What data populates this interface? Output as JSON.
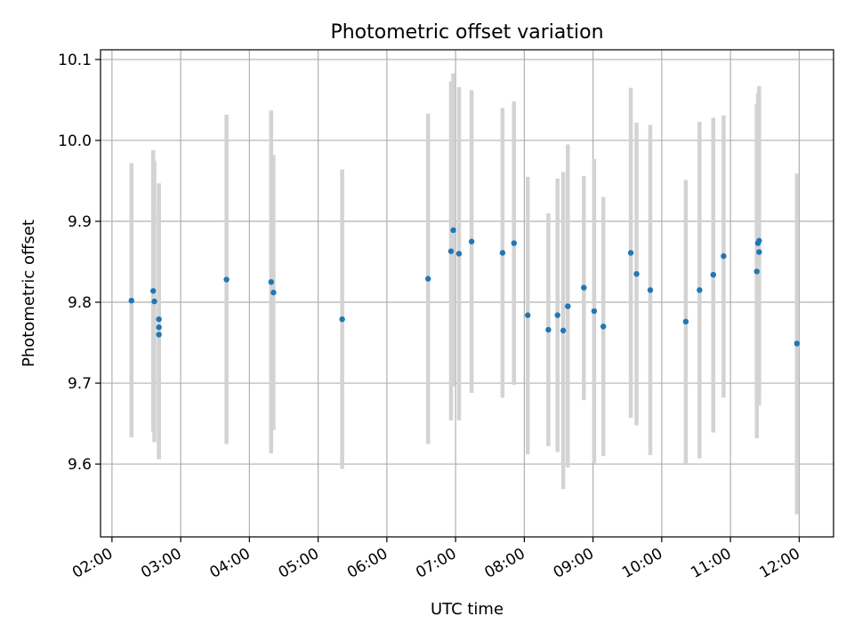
{
  "chart_data": {
    "type": "scatter",
    "title": "Photometric offset variation",
    "xlabel": "UTC time",
    "ylabel": "Photometric offset",
    "xlim": [
      "01:50",
      "12:30"
    ],
    "ylim": [
      9.51,
      10.112
    ],
    "grid": true,
    "x_ticks": [
      "02:00",
      "03:00",
      "04:00",
      "05:00",
      "06:00",
      "07:00",
      "08:00",
      "09:00",
      "10:00",
      "11:00",
      "12:00"
    ],
    "y_ticks": [
      "9.6",
      "9.7",
      "9.8",
      "9.9",
      "10.0",
      "10.1"
    ],
    "marker_color": "#1f77b4",
    "errorbar_color": "#d3d3d3",
    "points": [
      {
        "time": "02:17",
        "y": 9.802,
        "y_lo": 9.633,
        "y_hi": 9.972
      },
      {
        "time": "02:36",
        "y": 9.814,
        "y_lo": 9.64,
        "y_hi": 9.988
      },
      {
        "time": "02:37",
        "y": 9.801,
        "y_lo": 9.627,
        "y_hi": 9.975
      },
      {
        "time": "02:41",
        "y": 9.779,
        "y_lo": 9.612,
        "y_hi": 9.947
      },
      {
        "time": "02:41",
        "y": 9.769,
        "y_lo": 9.606,
        "y_hi": 9.933
      },
      {
        "time": "02:41",
        "y": 9.76,
        "y_lo": 9.606,
        "y_hi": 9.914
      },
      {
        "time": "03:40",
        "y": 9.828,
        "y_lo": 9.625,
        "y_hi": 10.032
      },
      {
        "time": "04:19",
        "y": 9.825,
        "y_lo": 9.613,
        "y_hi": 10.037
      },
      {
        "time": "04:21",
        "y": 9.812,
        "y_lo": 9.642,
        "y_hi": 9.982
      },
      {
        "time": "05:21",
        "y": 9.779,
        "y_lo": 9.594,
        "y_hi": 9.964
      },
      {
        "time": "06:36",
        "y": 9.829,
        "y_lo": 9.625,
        "y_hi": 10.033
      },
      {
        "time": "06:56",
        "y": 9.863,
        "y_lo": 9.654,
        "y_hi": 10.073
      },
      {
        "time": "06:58",
        "y": 9.889,
        "y_lo": 9.696,
        "y_hi": 10.083
      },
      {
        "time": "07:03",
        "y": 9.86,
        "y_lo": 9.654,
        "y_hi": 10.066
      },
      {
        "time": "07:14",
        "y": 9.875,
        "y_lo": 9.688,
        "y_hi": 10.062
      },
      {
        "time": "07:41",
        "y": 9.861,
        "y_lo": 9.682,
        "y_hi": 10.04
      },
      {
        "time": "07:51",
        "y": 9.873,
        "y_lo": 9.698,
        "y_hi": 10.048
      },
      {
        "time": "08:03",
        "y": 9.784,
        "y_lo": 9.612,
        "y_hi": 9.955
      },
      {
        "time": "08:21",
        "y": 9.766,
        "y_lo": 9.622,
        "y_hi": 9.91
      },
      {
        "time": "08:29",
        "y": 9.784,
        "y_lo": 9.615,
        "y_hi": 9.953
      },
      {
        "time": "08:34",
        "y": 9.765,
        "y_lo": 9.569,
        "y_hi": 9.961
      },
      {
        "time": "08:38",
        "y": 9.795,
        "y_lo": 9.596,
        "y_hi": 9.995
      },
      {
        "time": "08:52",
        "y": 9.818,
        "y_lo": 9.679,
        "y_hi": 9.956
      },
      {
        "time": "09:01",
        "y": 9.789,
        "y_lo": 9.601,
        "y_hi": 9.977
      },
      {
        "time": "09:09",
        "y": 9.77,
        "y_lo": 9.61,
        "y_hi": 9.93
      },
      {
        "time": "09:33",
        "y": 9.861,
        "y_lo": 9.657,
        "y_hi": 10.065
      },
      {
        "time": "09:38",
        "y": 9.835,
        "y_lo": 9.648,
        "y_hi": 10.022
      },
      {
        "time": "09:50",
        "y": 9.815,
        "y_lo": 9.611,
        "y_hi": 10.019
      },
      {
        "time": "10:21",
        "y": 9.776,
        "y_lo": 9.6,
        "y_hi": 9.951
      },
      {
        "time": "10:33",
        "y": 9.815,
        "y_lo": 9.607,
        "y_hi": 10.023
      },
      {
        "time": "10:45",
        "y": 9.834,
        "y_lo": 9.639,
        "y_hi": 10.028
      },
      {
        "time": "10:54",
        "y": 9.857,
        "y_lo": 9.682,
        "y_hi": 10.031
      },
      {
        "time": "11:23",
        "y": 9.838,
        "y_lo": 9.632,
        "y_hi": 10.045
      },
      {
        "time": "11:24",
        "y": 9.873,
        "y_lo": 9.68,
        "y_hi": 10.058
      },
      {
        "time": "11:25",
        "y": 9.862,
        "y_lo": 9.672,
        "y_hi": 10.056
      },
      {
        "time": "11:25",
        "y": 9.876,
        "y_lo": 9.685,
        "y_hi": 10.067
      },
      {
        "time": "11:58",
        "y": 9.749,
        "y_lo": 9.538,
        "y_hi": 9.959
      }
    ]
  }
}
